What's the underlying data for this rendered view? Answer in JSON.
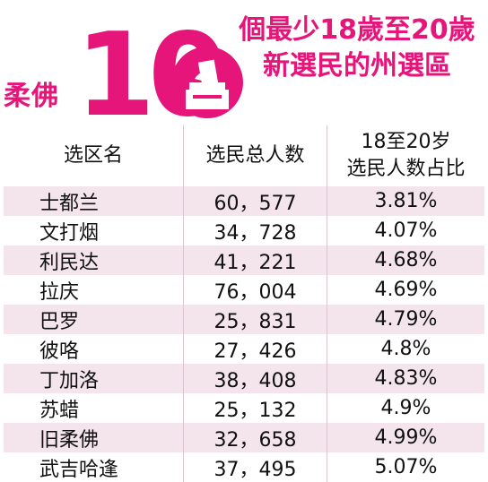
{
  "header": {
    "state": "柔佛",
    "big_number": "10",
    "title_line1": "個最少18歲至20歲",
    "title_line2": "新選民的州選區",
    "accent_color": "#e6157a",
    "icon": "ballot-box-icon"
  },
  "table": {
    "columns": [
      "选区名",
      "选民总人数",
      "18至20岁",
      "选民人数占比"
    ],
    "rows": [
      {
        "name": "士都兰",
        "voters": "60，577",
        "pct": "3.81%"
      },
      {
        "name": "文打烟",
        "voters": "34，728",
        "pct": "4.07%"
      },
      {
        "name": "利民达",
        "voters": "41，221",
        "pct": "4.68%"
      },
      {
        "name": "拉庆",
        "voters": "76，004",
        "pct": "4.69%"
      },
      {
        "name": "巴罗",
        "voters": "25，831",
        "pct": "4.79%"
      },
      {
        "name": "彼咯",
        "voters": "27，426",
        "pct": "4.8%"
      },
      {
        "name": "丁加洛",
        "voters": "38，408",
        "pct": "4.83%"
      },
      {
        "name": "苏蜡",
        "voters": "25，132",
        "pct": "4.9%"
      },
      {
        "name": "旧柔佛",
        "voters": "32，658",
        "pct": "4.99%"
      },
      {
        "name": "武吉哈逢",
        "voters": "37，495",
        "pct": "5.07%"
      }
    ]
  }
}
